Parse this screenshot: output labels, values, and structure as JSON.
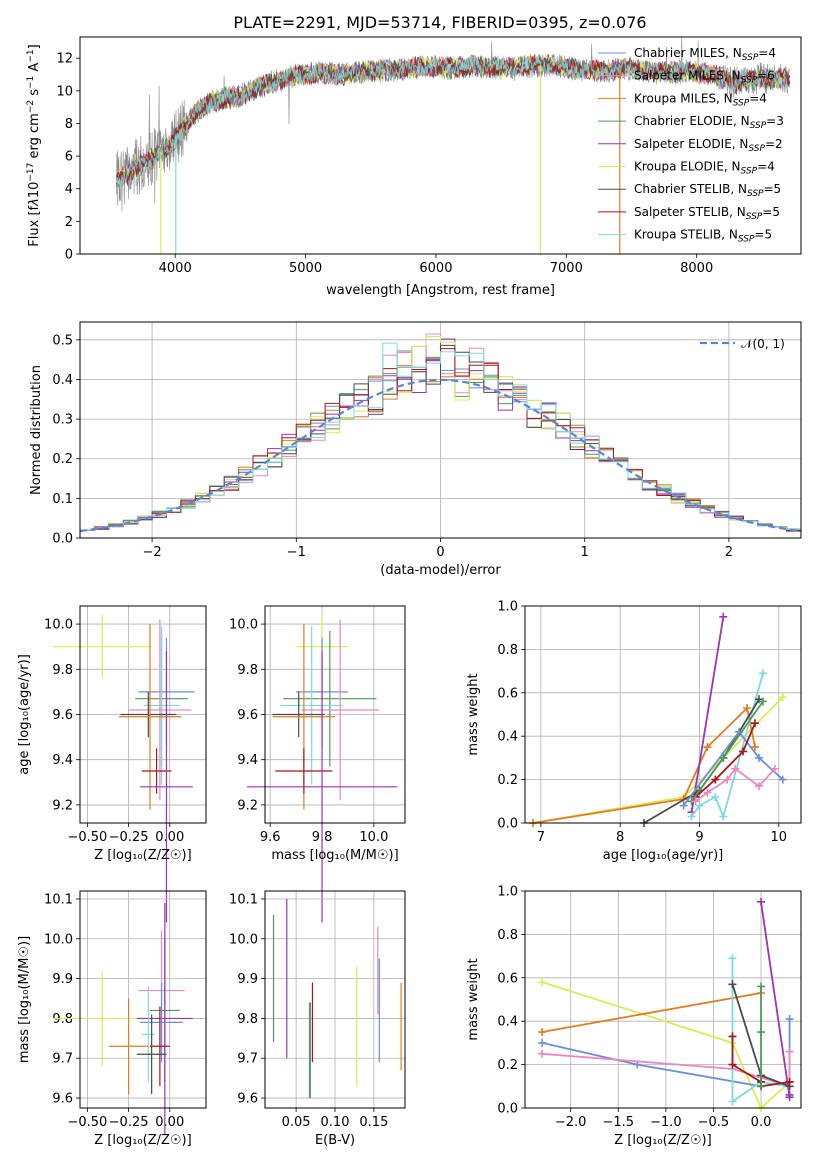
{
  "colors": {
    "Chabrier MILES": "#6b8fd6",
    "Salpeter MILES": "#ea88c0",
    "Kroupa MILES": "#e07c22",
    "Chabrier ELODIE": "#4f9a57",
    "Salpeter ELODIE": "#9b35b0",
    "Kroupa ELODIE": "#d8ec58",
    "Chabrier STELIB": "#4a4a4a",
    "Salpeter STELIB": "#a51818",
    "Kroupa STELIB": "#7fd8e0",
    "data": "#888888",
    "gaussian": "#5b86d4"
  },
  "chart_data": [
    {
      "id": "spectrum",
      "type": "line",
      "title": "PLATE=2291, MJD=53714, FIBERID=0395, z=0.076",
      "xlabel": "wavelength [Angstrom, rest frame]",
      "ylabel_html": "Flux [f<tspan font-style='italic'>λ</tspan>10<tspan baseline-shift='super' font-size='9'>−17</tspan> erg cm<tspan baseline-shift='super' font-size='9'>−2</tspan> s<tspan baseline-shift='super' font-size='9'>−1</tspan> A<tspan baseline-shift='super' font-size='9'>−1</tspan>]",
      "xlim": [
        3270,
        8800
      ],
      "ylim": [
        0,
        13.3
      ],
      "xticks": [
        4000,
        5000,
        6000,
        7000,
        8000
      ],
      "yticks": [
        0,
        2,
        4,
        6,
        8,
        10,
        12
      ],
      "grid": false,
      "legend_placement": "upper right",
      "legend": [
        {
          "name": "Chabrier MILES",
          "nssp": "4"
        },
        {
          "name": "Salpeter MILES",
          "nssp": "6"
        },
        {
          "name": "Kroupa MILES",
          "nssp": "4"
        },
        {
          "name": "Chabrier ELODIE",
          "nssp": "3"
        },
        {
          "name": "Salpeter ELODIE",
          "nssp": "2"
        },
        {
          "name": "Kroupa ELODIE",
          "nssp": "4"
        },
        {
          "name": "Chabrier STELIB",
          "nssp": "5"
        },
        {
          "name": "Salpeter STELIB",
          "nssp": "5"
        },
        {
          "name": "Kroupa STELIB",
          "nssp": "5"
        }
      ],
      "continuum": {
        "x": [
          3550,
          3650,
          3800,
          3950,
          4050,
          4150,
          4300,
          4500,
          4700,
          4900,
          5100,
          5300,
          5500,
          5700,
          5900,
          6100,
          6300,
          6500,
          6700,
          6900,
          7100,
          7300,
          7500,
          7700,
          7900,
          8100,
          8300,
          8500,
          8700
        ],
        "y": [
          4.6,
          5.0,
          5.8,
          6.6,
          7.6,
          8.6,
          9.4,
          9.7,
          10.4,
          10.9,
          11.1,
          11.0,
          11.2,
          11.3,
          11.5,
          11.4,
          11.5,
          11.4,
          11.5,
          11.6,
          11.3,
          11.2,
          11.4,
          11.1,
          11.2,
          11.0,
          10.5,
          10.8,
          10.7
        ]
      },
      "drop_lines": [
        {
          "x": 3890,
          "series": "Kroupa ELODIE"
        },
        {
          "x": 4005,
          "series": "Kroupa STELIB"
        },
        {
          "x": 6800,
          "series": "Kroupa ELODIE"
        },
        {
          "x": 7410,
          "series": "Kroupa MILES"
        }
      ]
    },
    {
      "id": "residuals",
      "type": "step-histogram",
      "xlabel": "(data-model)/error",
      "ylabel": "Normed distribution",
      "xlim": [
        -2.5,
        2.5
      ],
      "ylim": [
        0,
        0.545
      ],
      "xticks": [
        -2,
        -1,
        0,
        1,
        2
      ],
      "yticks": [
        0.0,
        0.1,
        0.2,
        0.3,
        0.4,
        0.5
      ],
      "grid": true,
      "legend_placement": "upper right",
      "legend_label": "𝒩(0, 1)",
      "bin_width": 0.1,
      "bin_start": -2.5,
      "gaussian": {
        "mu": 0,
        "sigma": 1
      }
    },
    {
      "id": "z-age",
      "type": "errorbar",
      "xlabel": "Z [log₁₀(Z/Z☉)]",
      "ylabel": "age  [log₁₀(age/yr)]",
      "xlim": [
        -0.545,
        0.22
      ],
      "ylim": [
        9.12,
        10.08
      ],
      "xticks": [
        -0.5,
        -0.25,
        0.0
      ],
      "xticklabels": [
        "−0.50",
        "−0.25",
        "0.00"
      ],
      "yticks": [
        9.2,
        9.4,
        9.6,
        9.8,
        10.0
      ],
      "grid": true,
      "points": [
        {
          "series": "Kroupa ELODIE",
          "x": -0.41,
          "xerr": 0.3,
          "y": 9.9,
          "yerr": 0.14
        },
        {
          "series": "Chabrier MILES",
          "x": -0.02,
          "xerr": 0.17,
          "y": 9.7,
          "yerr": 0.24
        },
        {
          "series": "Chabrier ELODIE",
          "x": -0.05,
          "xerr": 0.16,
          "y": 9.67,
          "yerr": 0.3
        },
        {
          "series": "Kroupa STELIB",
          "x": -0.05,
          "xerr": 0.11,
          "y": 9.64,
          "yerr": 0.35
        },
        {
          "series": "Salpeter MILES",
          "x": -0.06,
          "xerr": 0.19,
          "y": 9.62,
          "yerr": 0.4
        },
        {
          "series": "Chabrier STELIB",
          "x": -0.13,
          "xerr": 0.17,
          "y": 9.6,
          "yerr": 0.1
        },
        {
          "series": "Kroupa MILES",
          "x": -0.12,
          "xerr": 0.19,
          "y": 9.59,
          "yerr": 0.41
        },
        {
          "series": "Salpeter STELIB",
          "x": -0.08,
          "xerr": 0.09,
          "y": 9.35,
          "yerr": 0.1
        },
        {
          "series": "Salpeter ELODIE",
          "x": -0.02,
          "xerr": 0.16,
          "y": 9.28,
          "yerr": 0.6
        }
      ]
    },
    {
      "id": "mass-age",
      "type": "errorbar",
      "xlabel": "mass [log₁₀(M/M☉)]",
      "ylabel": "",
      "xlim": [
        9.58,
        10.12
      ],
      "ylim": [
        9.12,
        10.08
      ],
      "xticks": [
        9.6,
        9.8,
        10.0
      ],
      "xticklabels": [
        "9.6",
        "9.8",
        "10.0"
      ],
      "yticks": [
        9.2,
        9.4,
        9.6,
        9.8,
        10.0
      ],
      "grid": true,
      "points": [
        {
          "series": "Kroupa ELODIE",
          "x": 9.8,
          "xerr": 0.1,
          "y": 9.9,
          "yerr": 0.14
        },
        {
          "series": "Chabrier MILES",
          "x": 9.8,
          "xerr": 0.1,
          "y": 9.7,
          "yerr": 0.24
        },
        {
          "series": "Chabrier ELODIE",
          "x": 9.83,
          "xerr": 0.18,
          "y": 9.67,
          "yerr": 0.3
        },
        {
          "series": "Kroupa STELIB",
          "x": 9.76,
          "xerr": 0.12,
          "y": 9.64,
          "yerr": 0.35
        },
        {
          "series": "Salpeter MILES",
          "x": 9.87,
          "xerr": 0.15,
          "y": 9.62,
          "yerr": 0.4
        },
        {
          "series": "Chabrier STELIB",
          "x": 9.71,
          "xerr": 0.1,
          "y": 9.6,
          "yerr": 0.1
        },
        {
          "series": "Kroupa MILES",
          "x": 9.73,
          "xerr": 0.12,
          "y": 9.59,
          "yerr": 0.41
        },
        {
          "series": "Salpeter STELIB",
          "x": 9.73,
          "xerr": 0.11,
          "y": 9.35,
          "yerr": 0.1
        },
        {
          "series": "Salpeter ELODIE",
          "x": 9.8,
          "xerr": 0.29,
          "y": 9.28,
          "yerr": 0.6
        }
      ]
    },
    {
      "id": "age-weight",
      "type": "line",
      "xlabel": "age  [log₁₀(age/yr)]",
      "ylabel": "mass weight",
      "xlim": [
        6.8,
        10.28
      ],
      "ylim": [
        0,
        1.0
      ],
      "xticks": [
        7,
        8,
        9,
        10
      ],
      "yticks": [
        0.0,
        0.2,
        0.4,
        0.6,
        0.8,
        1.0
      ],
      "grid": true,
      "lines": [
        {
          "series": "Kroupa ELODIE",
          "x": [
            6.9,
            8.8,
            9.3,
            10.05
          ],
          "y": [
            0.0,
            0.12,
            0.3,
            0.58
          ]
        },
        {
          "series": "Kroupa MILES",
          "x": [
            6.9,
            8.8,
            9.1,
            9.6,
            9.7
          ],
          "y": [
            0.0,
            0.11,
            0.35,
            0.53,
            0.35
          ]
        },
        {
          "series": "Salpeter ELODIE",
          "x": [
            8.9,
            9.3
          ],
          "y": [
            0.05,
            0.95
          ]
        },
        {
          "series": "Kroupa STELIB",
          "x": [
            8.9,
            9.0,
            9.2,
            9.3,
            9.8
          ],
          "y": [
            0.03,
            0.08,
            0.12,
            0.03,
            0.69
          ]
        },
        {
          "series": "Chabrier STELIB",
          "x": [
            8.3,
            9.0,
            9.3,
            9.75
          ],
          "y": [
            0.0,
            0.15,
            0.3,
            0.57
          ]
        },
        {
          "series": "Chabrier MILES",
          "x": [
            8.8,
            9.5,
            9.75,
            10.05
          ],
          "y": [
            0.08,
            0.42,
            0.3,
            0.2
          ]
        },
        {
          "series": "Salpeter STELIB",
          "x": [
            8.95,
            9.2,
            9.55,
            9.7
          ],
          "y": [
            0.12,
            0.2,
            0.33,
            0.46
          ]
        },
        {
          "series": "Chabrier ELODIE",
          "x": [
            8.9,
            9.3,
            9.8
          ],
          "y": [
            0.1,
            0.3,
            0.56
          ]
        },
        {
          "series": "Salpeter MILES",
          "x": [
            8.95,
            9.1,
            9.35,
            9.45,
            9.75,
            9.95
          ],
          "y": [
            0.1,
            0.14,
            0.2,
            0.25,
            0.17,
            0.25
          ]
        }
      ]
    },
    {
      "id": "z-mass",
      "type": "errorbar",
      "xlabel": "Z [log₁₀(Z/Z☉)]",
      "ylabel": "mass [log₁₀(M/M☉)]",
      "xlim": [
        -0.545,
        0.22
      ],
      "ylim": [
        9.575,
        10.12
      ],
      "xticks": [
        -0.5,
        -0.25,
        0.0
      ],
      "xticklabels": [
        "−0.50",
        "−0.25",
        "0.00"
      ],
      "yticks": [
        9.6,
        9.7,
        9.8,
        9.9,
        10.0,
        10.1
      ],
      "yticklabels": [
        "9.6",
        "9.7",
        "9.8",
        "9.9",
        "10.0",
        "10.1"
      ],
      "grid": true,
      "points": [
        {
          "series": "Kroupa ELODIE",
          "x": -0.41,
          "xerr": 0.3,
          "y": 9.8,
          "yerr": 0.12
        },
        {
          "series": "Salpeter MILES",
          "x": -0.05,
          "xerr": 0.14,
          "y": 9.87,
          "yerr": 0.15
        },
        {
          "series": "Chabrier ELODIE",
          "x": -0.03,
          "xerr": 0.09,
          "y": 9.82,
          "yerr": 0.18
        },
        {
          "series": "Salpeter ELODIE",
          "x": -0.03,
          "xerr": 0.17,
          "y": 9.8,
          "yerr": 0.29
        },
        {
          "series": "Chabrier MILES",
          "x": -0.05,
          "xerr": 0.13,
          "y": 9.79,
          "yerr": 0.1
        },
        {
          "series": "Kroupa STELIB",
          "x": -0.13,
          "xerr": 0.04,
          "y": 9.76,
          "yerr": 0.12
        },
        {
          "series": "Kroupa MILES",
          "x": -0.25,
          "xerr": 0.12,
          "y": 9.73,
          "yerr": 0.12
        },
        {
          "series": "Salpeter STELIB",
          "x": -0.06,
          "xerr": 0.06,
          "y": 9.73,
          "yerr": 0.1
        },
        {
          "series": "Chabrier STELIB",
          "x": -0.11,
          "xerr": 0.09,
          "y": 9.71,
          "yerr": 0.1
        }
      ]
    },
    {
      "id": "ebv-mass",
      "type": "errorbar",
      "xlabel": "E(B-V)",
      "ylabel": "",
      "xlim": [
        0.01,
        0.19
      ],
      "ylim": [
        9.575,
        10.12
      ],
      "xticks": [
        0.05,
        0.1,
        0.15
      ],
      "xticklabels": [
        "0.05",
        "0.10",
        "0.15"
      ],
      "yticks": [
        9.6,
        9.7,
        9.8,
        9.9,
        10.0,
        10.1
      ],
      "yticklabels": [
        "9.6",
        "9.7",
        "9.8",
        "9.9",
        "10.0",
        "10.1"
      ],
      "grid": true,
      "points": [
        {
          "series": "Chabrier ELODIE",
          "x": 0.021,
          "xerr": 0,
          "y": 9.9,
          "yerr": 0.16
        },
        {
          "series": "Salpeter ELODIE",
          "x": 0.038,
          "xerr": 0,
          "y": 9.9,
          "yerr": 0.2
        },
        {
          "series": "Kroupa STELIB",
          "x": 0.067,
          "xerr": 0,
          "y": 9.72,
          "yerr": 0.12
        },
        {
          "series": "Chabrier STELIB",
          "x": 0.068,
          "xerr": 0,
          "y": 9.72,
          "yerr": 0.12
        },
        {
          "series": "Salpeter STELIB",
          "x": 0.071,
          "xerr": 0,
          "y": 9.79,
          "yerr": 0.1
        },
        {
          "series": "Kroupa ELODIE",
          "x": 0.128,
          "xerr": 0,
          "y": 9.78,
          "yerr": 0.15
        },
        {
          "series": "Salpeter MILES",
          "x": 0.155,
          "xerr": 0,
          "y": 9.92,
          "yerr": 0.11
        },
        {
          "series": "Chabrier MILES",
          "x": 0.157,
          "xerr": 0,
          "y": 9.82,
          "yerr": 0.13
        },
        {
          "series": "Kroupa MILES",
          "x": 0.185,
          "xerr": 0,
          "y": 9.78,
          "yerr": 0.11
        }
      ]
    },
    {
      "id": "z-weight",
      "type": "line",
      "xlabel": "Z [log₁₀(Z/Z☉)]",
      "ylabel": "mass weight",
      "xlim": [
        -2.48,
        0.42
      ],
      "ylim": [
        0,
        1.0
      ],
      "xticks": [
        -2.0,
        -1.5,
        -1.0,
        -0.5,
        0.0
      ],
      "xticklabels": [
        "−2.0",
        "−1.5",
        "−1.0",
        "−0.5",
        "0.0"
      ],
      "yticks": [
        0.0,
        0.2,
        0.4,
        0.6,
        0.8,
        1.0
      ],
      "grid": true,
      "lines": [
        {
          "series": "Kroupa ELODIE",
          "x": [
            -2.3,
            -0.3,
            0.0,
            0.3
          ],
          "y": [
            0.58,
            0.3,
            0.0,
            0.12
          ]
        },
        {
          "series": "Kroupa MILES",
          "x": [
            -2.3,
            0.0
          ],
          "y": [
            0.35,
            0.53
          ]
        },
        {
          "series": "Chabrier MILES",
          "x": [
            -2.3,
            -1.3,
            0.0,
            0.3,
            0.3
          ],
          "y": [
            0.3,
            0.2,
            0.1,
            0.12,
            0.41
          ]
        },
        {
          "series": "Salpeter MILES",
          "x": [
            -2.3,
            -0.3,
            0.3,
            0.3
          ],
          "y": [
            0.25,
            0.18,
            0.1,
            0.26
          ]
        },
        {
          "series": "Kroupa STELIB",
          "x": [
            -0.3,
            -0.3,
            0.0,
            0.3
          ],
          "y": [
            0.69,
            0.03,
            0.12,
            0.1
          ]
        },
        {
          "series": "Chabrier STELIB",
          "x": [
            -0.3,
            0.0,
            0.3
          ],
          "y": [
            0.57,
            0.15,
            0.1
          ]
        },
        {
          "series": "Salpeter ELODIE",
          "x": [
            0.0,
            0.3,
            0.3
          ],
          "y": [
            0.95,
            0.05,
            0.06
          ]
        },
        {
          "series": "Salpeter STELIB",
          "x": [
            -0.3,
            -0.3,
            0.0,
            0.0,
            0.3
          ],
          "y": [
            0.33,
            0.2,
            0.12,
            0.1,
            0.12
          ]
        },
        {
          "series": "Chabrier ELODIE",
          "x": [
            0.0,
            0.0,
            0.0
          ],
          "y": [
            0.56,
            0.35,
            0.1
          ]
        }
      ]
    }
  ]
}
